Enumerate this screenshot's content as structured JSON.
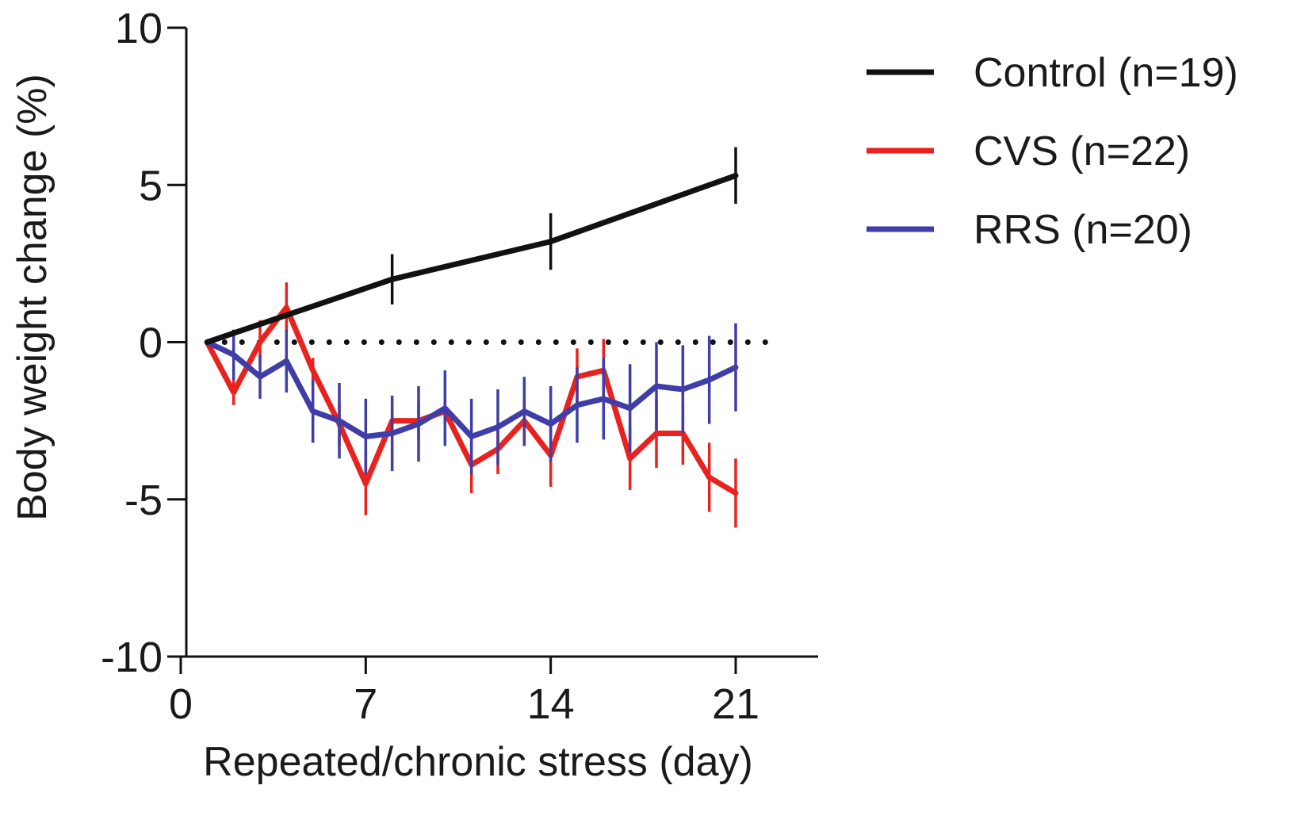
{
  "chart_data": {
    "type": "line",
    "xlabel": "Repeated/chronic stress (day)",
    "ylabel": "Body weight change (%)",
    "xlim": [
      0,
      23
    ],
    "ylim": [
      -10,
      10
    ],
    "xticks": [
      0,
      7,
      14,
      21
    ],
    "yticks": [
      10,
      5,
      0,
      -5,
      -10
    ],
    "xtick_labels": [
      "0",
      "7",
      "14",
      "21"
    ],
    "ytick_labels": [
      "10",
      "5",
      "0",
      "-5",
      "-10"
    ],
    "reference_line": {
      "y": 0,
      "style": "dotted",
      "x_range": [
        1,
        23
      ]
    },
    "legend_position": "top-right",
    "series": [
      {
        "name": "Control (n=19)",
        "color": "#111111",
        "x": [
          1,
          8,
          14,
          21
        ],
        "y": [
          0,
          2.0,
          3.2,
          5.3
        ],
        "err": [
          0,
          0.8,
          0.9,
          0.9
        ]
      },
      {
        "name": "CVS (n=22)",
        "color": "#e8231f",
        "x": [
          1,
          2,
          3,
          4,
          5,
          6,
          7,
          8,
          9,
          10,
          11,
          12,
          13,
          14,
          15,
          16,
          17,
          18,
          19,
          20,
          21
        ],
        "y": [
          0,
          -1.6,
          0.0,
          1.1,
          -0.9,
          -2.6,
          -4.5,
          -2.5,
          -2.5,
          -2.2,
          -3.9,
          -3.4,
          -2.5,
          -3.6,
          -1.1,
          -0.9,
          -3.7,
          -2.9,
          -2.9,
          -4.3,
          -4.8
        ],
        "err": [
          0,
          0.4,
          0.7,
          0.8,
          0.4,
          0.7,
          1.0,
          0.3,
          0.6,
          0.4,
          0.9,
          0.8,
          0.7,
          1.0,
          0.9,
          1.0,
          1.0,
          1.1,
          1.0,
          1.1,
          1.1
        ]
      },
      {
        "name": "RRS (n=20)",
        "color": "#3f3da8",
        "x": [
          1,
          2,
          3,
          4,
          5,
          6,
          7,
          8,
          9,
          10,
          11,
          12,
          13,
          14,
          15,
          16,
          17,
          18,
          19,
          20,
          21
        ],
        "y": [
          0,
          -0.4,
          -1.1,
          -0.6,
          -2.2,
          -2.5,
          -3.0,
          -2.9,
          -2.6,
          -2.1,
          -3.0,
          -2.7,
          -2.2,
          -2.6,
          -2.0,
          -1.8,
          -2.1,
          -1.4,
          -1.5,
          -1.2,
          -0.8
        ],
        "err": [
          0,
          0.8,
          0.7,
          1.0,
          1.0,
          1.2,
          1.2,
          1.2,
          1.2,
          1.2,
          1.2,
          1.2,
          1.1,
          1.2,
          1.2,
          1.3,
          1.4,
          1.4,
          1.4,
          1.4,
          1.4
        ]
      }
    ]
  }
}
